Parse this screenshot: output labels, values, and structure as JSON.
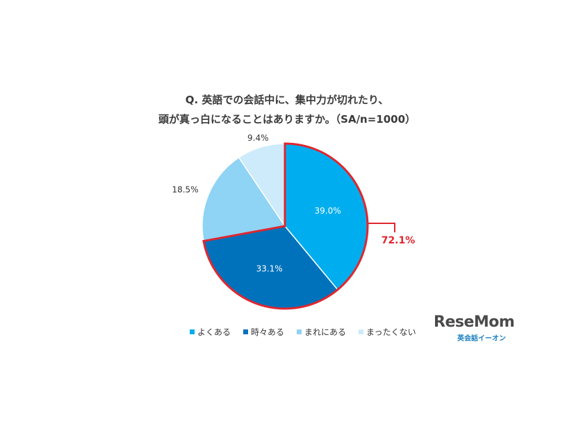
{
  "chart_data": {
    "type": "pie",
    "title_line1": "Q. 英語での会話中に、集中力が切れたり、",
    "title_line2": "頭が真っ白になることはありますか。（SA/n=1000）",
    "slices": [
      {
        "label": "よくある",
        "value": 39.0,
        "display": "39.0%",
        "color": "#00aeef"
      },
      {
        "label": "時々ある",
        "value": 33.1,
        "display": "33.1%",
        "color": "#0072bc"
      },
      {
        "label": "まれにある",
        "value": 18.5,
        "display": "18.5%",
        "color": "#8fd3f5"
      },
      {
        "label": "まったくない",
        "value": 9.4,
        "display": "9.4%",
        "color": "#cdebfa"
      }
    ],
    "highlight": {
      "label": "72.1%",
      "color": "#e0262e",
      "slices": [
        "よくある",
        "時々ある"
      ]
    }
  },
  "logo": {
    "main": "ReseMom",
    "sub": "英会話イーオン"
  }
}
